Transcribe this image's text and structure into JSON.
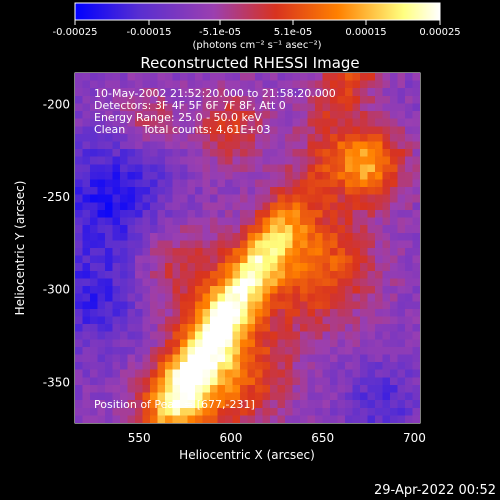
{
  "chart_data": {
    "type": "heatmap",
    "title": "Reconstructed RHESSI Image",
    "xlabel": "Heliocentric X (arcsec)",
    "ylabel": "Heliocentric Y (arcsec)",
    "xlim": [
      515,
      703
    ],
    "ylim": [
      -372,
      -183
    ],
    "x_ticks": [
      550,
      600,
      650,
      700
    ],
    "y_ticks": [
      -200,
      -250,
      -300,
      -350
    ],
    "colorbar": {
      "range": [
        -0.00025,
        0.00025
      ],
      "tick_labels": [
        "-0.00025",
        "-0.00015",
        "-5.1e-05",
        "5.1e-05",
        "0.00015",
        "0.00025"
      ],
      "unit_label": "(photons cm⁻² s⁻¹ asec⁻²)",
      "colors": [
        "#0000ff",
        "#5a2fd0",
        "#9b3fb0",
        "#d8331f",
        "#ff8000",
        "#ffff80",
        "#ffffff"
      ]
    },
    "annotations": [
      "10-May-2002 21:52:20.000 to 21:58:20.000",
      "Detectors: 3F 4F 5F 6F 7F 8F, Att 0",
      "Energy Range: 25.0 - 50.0 keV",
      "Clean     Total counts: 4.61E+03",
      "Position of Peak = [677,-231]"
    ],
    "peak_position": [
      677,
      -231
    ],
    "grid": false
  },
  "footer": {
    "timestamp": "29-Apr-2022 00:52"
  }
}
